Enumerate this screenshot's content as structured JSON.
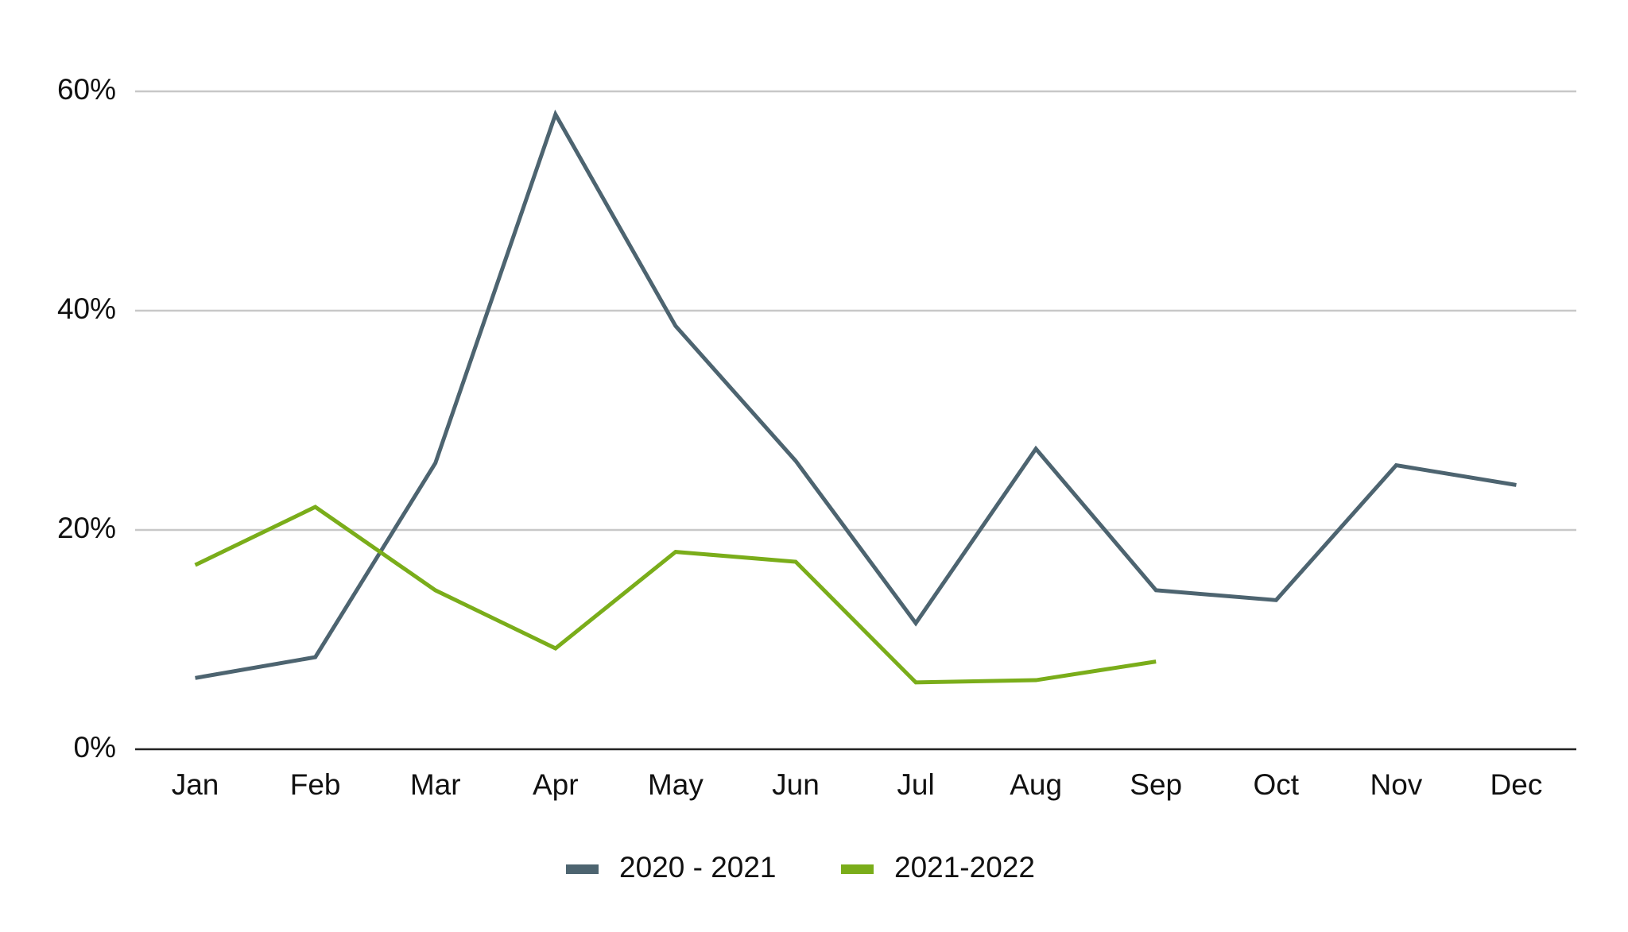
{
  "chart_data": {
    "type": "line",
    "categories": [
      "Jan",
      "Feb",
      "Mar",
      "Apr",
      "May",
      "Jun",
      "Jul",
      "Aug",
      "Sep",
      "Oct",
      "Nov",
      "Dec"
    ],
    "series": [
      {
        "name": "2020 - 2021",
        "color": "#4d6470",
        "values": [
          6.5,
          8.4,
          26.1,
          57.9,
          38.6,
          26.3,
          11.5,
          27.4,
          14.5,
          13.6,
          25.9,
          24.1
        ]
      },
      {
        "name": "2021-2022",
        "color": "#7aad1a",
        "values": [
          16.8,
          22.1,
          14.5,
          9.2,
          18.0,
          17.1,
          6.1,
          6.3,
          8.0,
          null,
          null,
          null
        ]
      }
    ],
    "ylim": [
      0,
      60
    ],
    "yticks": [
      {
        "value": 0,
        "label": "0%"
      },
      {
        "value": 20,
        "label": "20%"
      },
      {
        "value": 40,
        "label": "40%"
      },
      {
        "value": 60,
        "label": "60%"
      }
    ],
    "grid": true,
    "legend": "bottom"
  }
}
